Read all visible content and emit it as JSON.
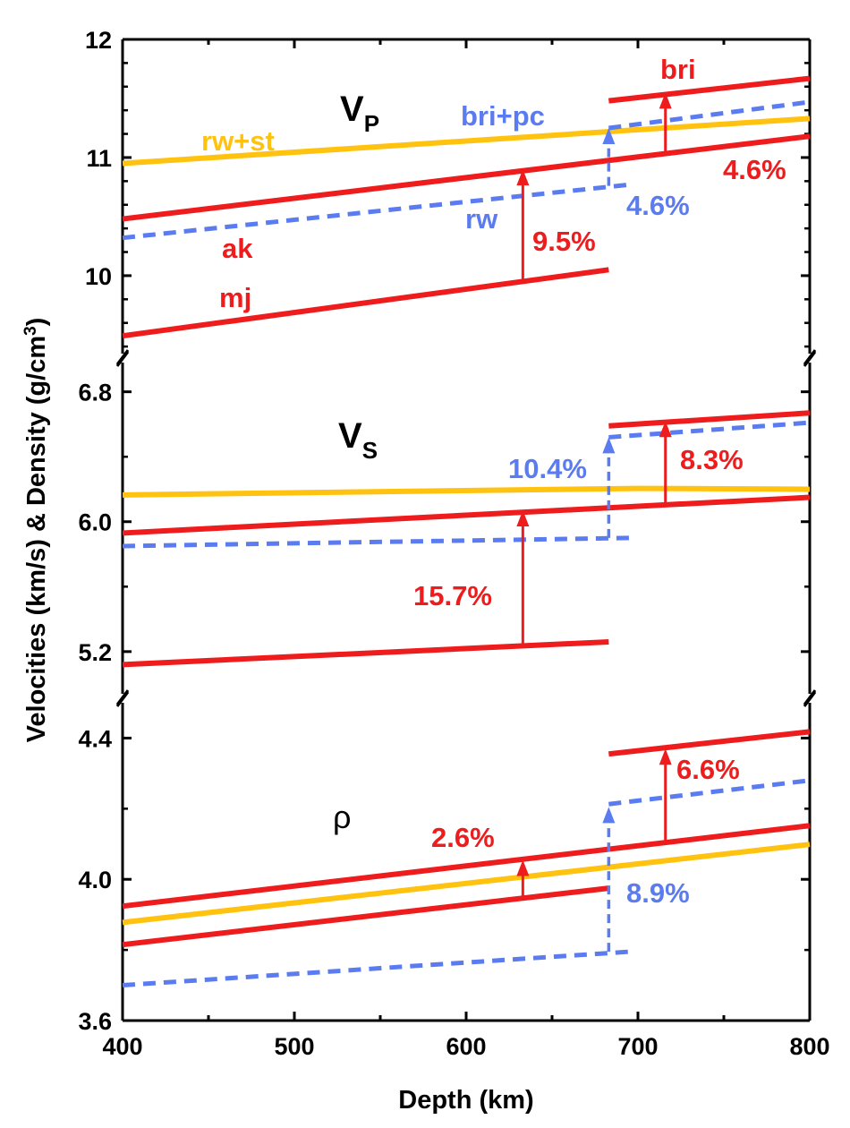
{
  "chart_data": {
    "type": "line",
    "xlabel": "Depth (km)",
    "ylabel": "Velocities (km/s) & Density (g/cm3)",
    "ylabel_parts": {
      "main": "Velocities (km/s) & Density (g/cm",
      "sup": "3",
      "end": ")"
    },
    "xlim": [
      400,
      800
    ],
    "x_ticks": [
      "400",
      "500",
      "600",
      "700",
      "800"
    ],
    "grid": false,
    "legend": "none (inline labels)",
    "colors": {
      "ak": "#ee1c1c",
      "mj": "#ee1c1c",
      "bri": "#ee1c1c",
      "rw+st": "#ffc20e",
      "rw": "#5b7cf0",
      "bri+pc": "#5b7cf0"
    },
    "panels": [
      {
        "key": "vp",
        "title": "V",
        "title_sub": "P",
        "ylim": [
          9.34,
          12.0
        ],
        "y_ticks": [
          "10",
          "11",
          "12"
        ],
        "series": [
          {
            "name": "rw+st",
            "color": "#ffc20e",
            "dash": false,
            "x": [
              400,
              800
            ],
            "y": [
              10.95,
              11.33
            ]
          },
          {
            "name": "ak",
            "color": "#ee1c1c",
            "dash": false,
            "x": [
              400,
              800
            ],
            "y": [
              10.48,
              11.18
            ]
          },
          {
            "name": "rw",
            "color": "#5b7cf0",
            "dash": true,
            "x": [
              400,
              695
            ],
            "y": [
              10.32,
              10.77
            ]
          },
          {
            "name": "bri+pc",
            "color": "#5b7cf0",
            "dash": true,
            "x": [
              683,
              800
            ],
            "y": [
              11.25,
              11.47
            ]
          },
          {
            "name": "mj",
            "color": "#ee1c1c",
            "dash": false,
            "x": [
              400,
              683
            ],
            "y": [
              9.49,
              10.05
            ]
          },
          {
            "name": "bri",
            "color": "#ee1c1c",
            "dash": false,
            "x": [
              683,
              800
            ],
            "y": [
              11.48,
              11.67
            ]
          }
        ],
        "arrows": [
          {
            "x": 633,
            "from": 9.95,
            "to": 10.9,
            "color": "#ee1c1c",
            "dash": false,
            "label": "9.5%"
          },
          {
            "x": 716,
            "from": 11.03,
            "to": 11.55,
            "color": "#ee1c1c",
            "dash": false,
            "label": "4.6%"
          },
          {
            "x": 683,
            "from": 10.76,
            "to": 11.25,
            "color": "#5b7cf0",
            "dash": true,
            "label": "4.6%"
          }
        ],
        "labels": [
          "rw+st",
          "ak",
          "mj",
          "rw",
          "bri+pc",
          "bri"
        ]
      },
      {
        "key": "vs",
        "title": "V",
        "title_sub": "S",
        "ylim": [
          4.94,
          6.98
        ],
        "y_ticks": [
          "5.2",
          "6.0",
          "6.8"
        ],
        "series": [
          {
            "name": "rw+st",
            "color": "#ffc20e",
            "dash": false,
            "x": [
              400,
              700,
              800
            ],
            "y": [
              6.165,
              6.205,
              6.2
            ]
          },
          {
            "name": "ak",
            "color": "#ee1c1c",
            "dash": false,
            "x": [
              400,
              800
            ],
            "y": [
              5.93,
              6.15
            ]
          },
          {
            "name": "rw",
            "color": "#5b7cf0",
            "dash": true,
            "x": [
              400,
              695
            ],
            "y": [
              5.85,
              5.9
            ]
          },
          {
            "name": "bri+pc",
            "color": "#5b7cf0",
            "dash": true,
            "x": [
              683,
              800
            ],
            "y": [
              6.52,
              6.61
            ]
          },
          {
            "name": "mj",
            "color": "#ee1c1c",
            "dash": false,
            "x": [
              400,
              683
            ],
            "y": [
              5.12,
              5.26
            ]
          },
          {
            "name": "bri",
            "color": "#ee1c1c",
            "dash": false,
            "x": [
              683,
              800
            ],
            "y": [
              6.59,
              6.67
            ]
          }
        ],
        "arrows": [
          {
            "x": 633,
            "from": 5.23,
            "to": 6.07,
            "color": "#ee1c1c",
            "dash": false,
            "label": "15.7%"
          },
          {
            "x": 716,
            "from": 6.1,
            "to": 6.62,
            "color": "#ee1c1c",
            "dash": false,
            "label": "8.3%"
          },
          {
            "x": 683,
            "from": 5.9,
            "to": 6.52,
            "color": "#5b7cf0",
            "dash": true,
            "label": "10.4%"
          }
        ]
      },
      {
        "key": "rho",
        "title": "ρ",
        "title_sub": "",
        "ylim": [
          3.6,
          4.5
        ],
        "y_ticks": [
          "3.6",
          "4.0",
          "4.4"
        ],
        "series": [
          {
            "name": "ak",
            "color": "#ee1c1c",
            "dash": false,
            "x": [
              400,
              800
            ],
            "y": [
              3.924,
              4.152
            ]
          },
          {
            "name": "rw+st",
            "color": "#ffc20e",
            "dash": false,
            "x": [
              400,
              800
            ],
            "y": [
              3.878,
              4.099
            ]
          },
          {
            "name": "mj",
            "color": "#ee1c1c",
            "dash": false,
            "x": [
              400,
              683
            ],
            "y": [
              3.815,
              3.975
            ]
          },
          {
            "name": "rw",
            "color": "#5b7cf0",
            "dash": true,
            "x": [
              400,
              695
            ],
            "y": [
              3.7,
              3.795
            ]
          },
          {
            "name": "bri+pc",
            "color": "#5b7cf0",
            "dash": true,
            "x": [
              683,
              800
            ],
            "y": [
              4.213,
              4.28
            ]
          },
          {
            "name": "bri",
            "color": "#ee1c1c",
            "dash": false,
            "x": [
              683,
              800
            ],
            "y": [
              4.355,
              4.418
            ]
          }
        ],
        "arrows": [
          {
            "x": 633,
            "from": 3.95,
            "to": 4.055,
            "color": "#ee1c1c",
            "dash": false,
            "label": "2.6%"
          },
          {
            "x": 716,
            "from": 4.105,
            "to": 4.37,
            "color": "#ee1c1c",
            "dash": false,
            "label": "6.6%"
          },
          {
            "x": 683,
            "from": 3.795,
            "to": 4.205,
            "color": "#5b7cf0",
            "dash": true,
            "label": "8.9%"
          }
        ]
      }
    ]
  }
}
